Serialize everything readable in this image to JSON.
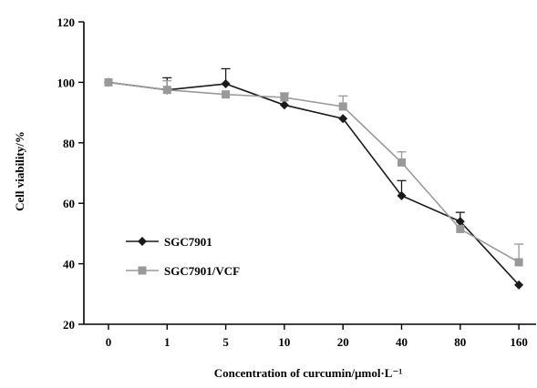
{
  "chart_data": {
    "type": "line",
    "title": "",
    "xlabel": "Concentration of curcumin/µmol·L⁻¹",
    "ylabel": "Cell viability/%",
    "categories": [
      "0",
      "1",
      "5",
      "10",
      "20",
      "40",
      "80",
      "160"
    ],
    "ylim": [
      20,
      120
    ],
    "yticks": [
      20,
      40,
      60,
      80,
      100,
      120
    ],
    "grid": false,
    "legend_position": "left-bottom",
    "series": [
      {
        "name": "SGC7901",
        "marker": "diamond",
        "color": "#1a1a1a",
        "values": [
          100,
          97.5,
          99.5,
          92.5,
          88,
          62.5,
          54,
          33
        ],
        "errors": [
          0,
          4,
          5,
          0,
          0,
          5,
          3,
          0
        ]
      },
      {
        "name": "SGC7901/VCF",
        "marker": "square",
        "color": "#999999",
        "values": [
          100,
          97.5,
          96,
          95,
          92,
          73.5,
          51.5,
          40.5
        ],
        "errors": [
          0,
          3,
          0,
          1.5,
          3.5,
          3.5,
          0,
          6
        ]
      }
    ]
  }
}
